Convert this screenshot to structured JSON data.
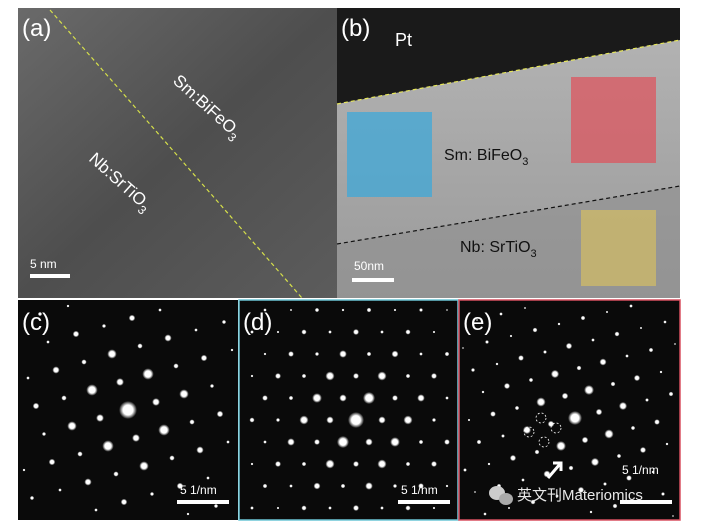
{
  "panels": {
    "a": {
      "label": "(a)",
      "top_material": {
        "main": "Sm:BiFeO",
        "sub": "3"
      },
      "bottom_material": {
        "main": "Nb:SrTiO",
        "sub": "3"
      },
      "scale_bar": "5 nm"
    },
    "b": {
      "label": "(b)",
      "cap_layer": "Pt",
      "top_material": {
        "main": "Sm: BiFeO",
        "sub": "3"
      },
      "bottom_material": {
        "main": "Nb: SrTiO",
        "sub": "3"
      },
      "scale_bar": "50nm"
    },
    "c": {
      "label": "(c)",
      "scale_bar": "5 1/nm"
    },
    "d": {
      "label": "(d)",
      "scale_bar": "5 1/nm"
    },
    "e": {
      "label": "(e)",
      "scale_bar": "5 1/nm",
      "watermark": "英文刊Materiomics"
    }
  }
}
